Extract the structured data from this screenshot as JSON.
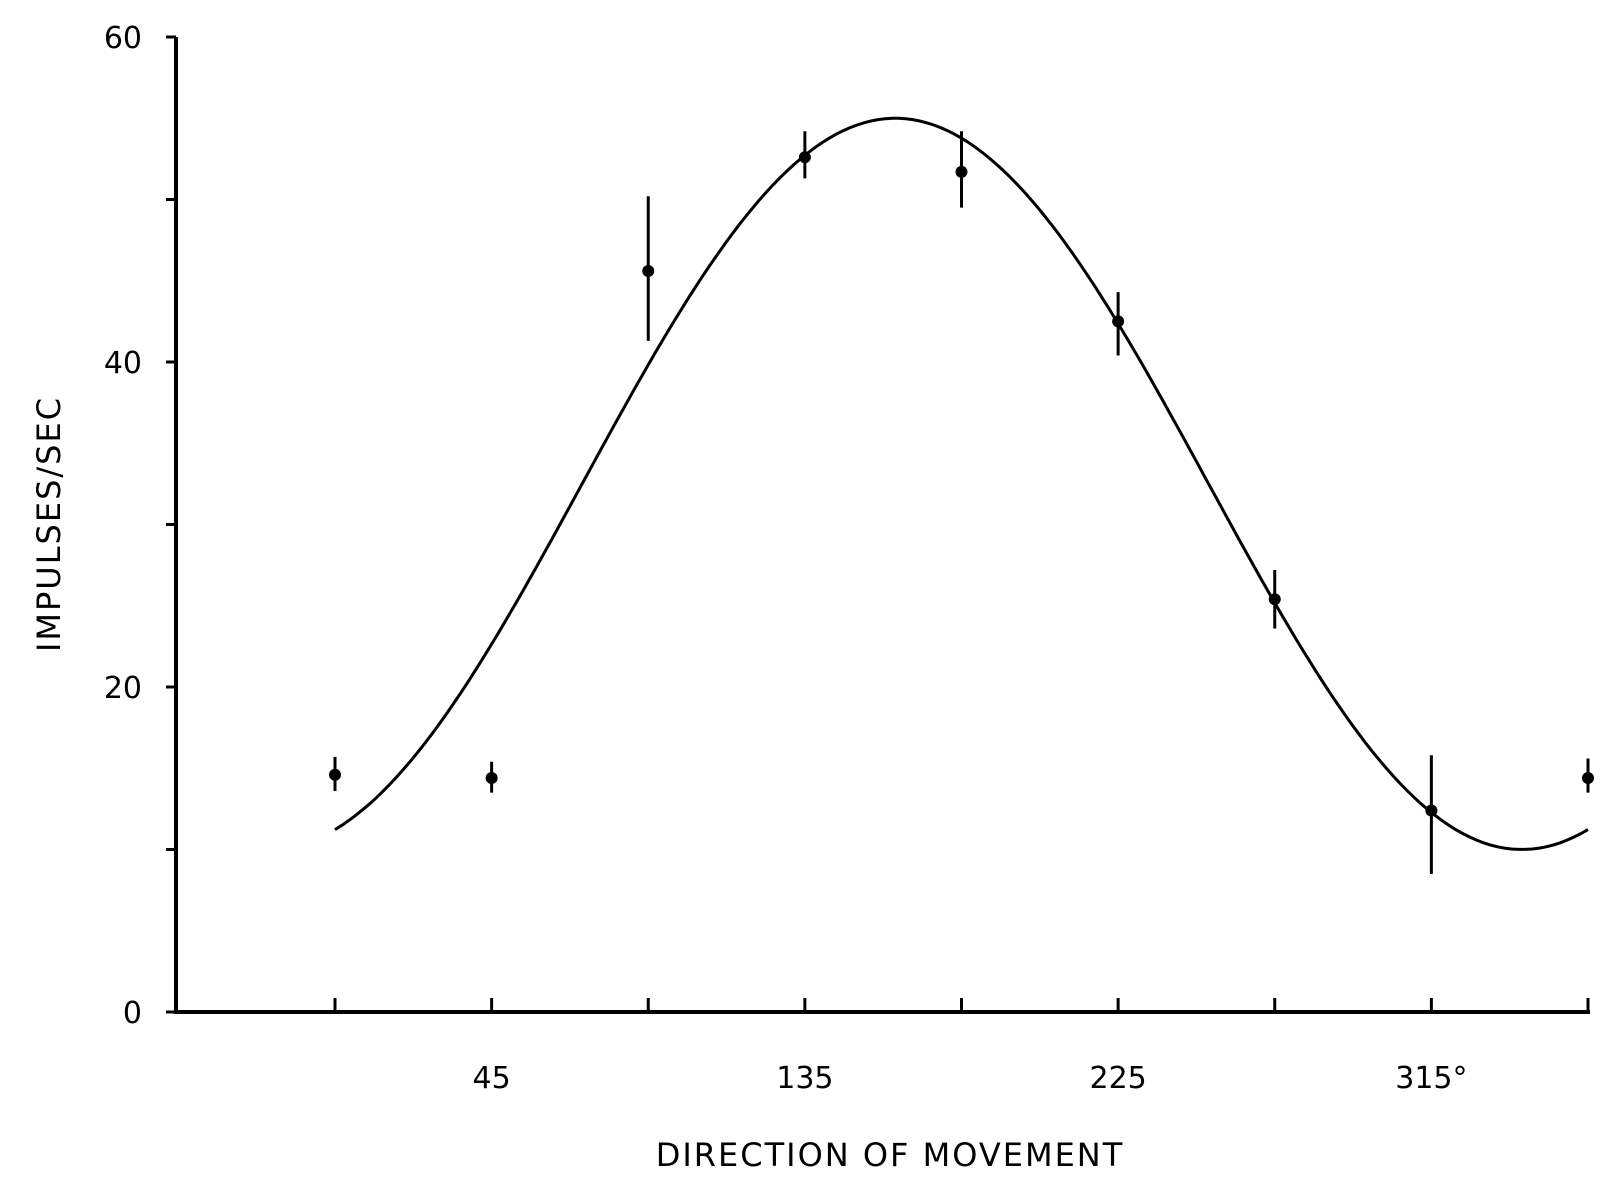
{
  "chart_data": {
    "type": "scatter",
    "title": "",
    "xlabel": "DIRECTION OF MOVEMENT",
    "ylabel": "IMPULSES/SEC",
    "xlim": [
      0,
      360
    ],
    "ylim": [
      0,
      60
    ],
    "x_tick_values": [
      0,
      45,
      90,
      135,
      180,
      225,
      270,
      315,
      360
    ],
    "x_tick_labels": [
      "",
      "45",
      "",
      "135",
      "",
      "225",
      "",
      "315°",
      ""
    ],
    "y_tick_values": [
      0,
      10,
      20,
      30,
      40,
      50,
      60
    ],
    "y_tick_labels": [
      "0",
      "",
      "20",
      "",
      "40",
      "",
      "60"
    ],
    "grid": false,
    "legend": "none",
    "series": [
      {
        "marker": "filled-circle",
        "x": [
          0,
          45,
          90,
          135,
          180,
          225,
          270,
          315,
          360
        ],
        "y": [
          14.6,
          14.4,
          45.6,
          52.6,
          51.7,
          42.5,
          25.4,
          12.4,
          14.4
        ],
        "err_low": [
          13.6,
          13.5,
          41.3,
          51.3,
          49.5,
          40.4,
          23.6,
          8.5,
          13.5
        ],
        "err_high": [
          15.7,
          15.4,
          50.2,
          54.2,
          54.2,
          44.3,
          27.2,
          15.8,
          15.6
        ]
      }
    ],
    "fitted_curve": {
      "type": "cosine",
      "baseline": 32.5,
      "amplitude": 22.5,
      "preferred_direction": 161,
      "x_range": [
        0,
        360
      ]
    }
  }
}
